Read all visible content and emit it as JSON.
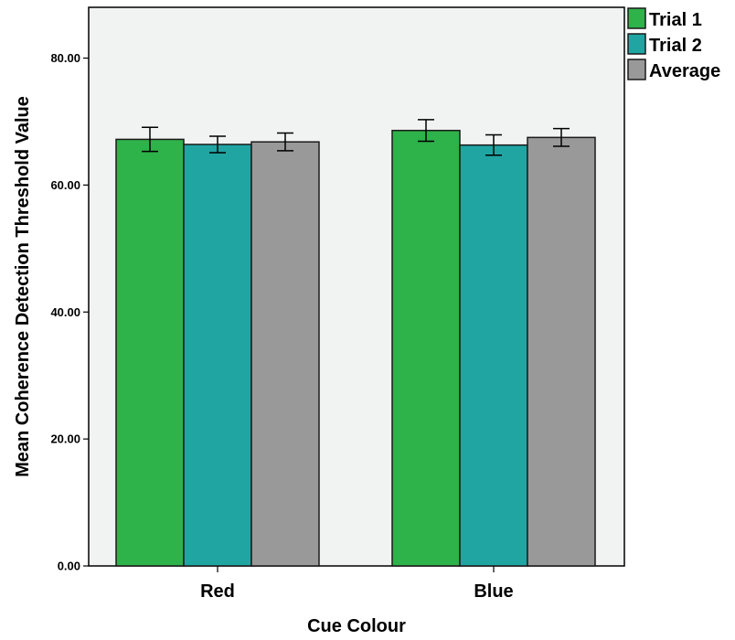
{
  "chart_data": {
    "type": "bar",
    "xlabel": "Cue Colour",
    "ylabel": "Mean Coherence Detection Threshold Value",
    "ylim": [
      0,
      88
    ],
    "yticks": [
      0,
      20,
      40,
      60,
      80
    ],
    "ytick_labels": [
      "0.00",
      "20.00",
      "40.00",
      "60.00",
      "80.00"
    ],
    "categories": [
      "Red",
      "Blue"
    ],
    "series": [
      {
        "name": "Trial 1",
        "color": "#2eb24a",
        "values": [
          67.2,
          68.6
        ],
        "error": [
          1.9,
          1.7
        ]
      },
      {
        "name": "Trial 2",
        "color": "#20a5a3",
        "values": [
          66.4,
          66.3
        ],
        "error": [
          1.3,
          1.6
        ]
      },
      {
        "name": "Average",
        "color": "#999999",
        "values": [
          66.8,
          67.5
        ],
        "error": [
          1.4,
          1.4
        ]
      }
    ],
    "legend_position": "top-right",
    "plot_background": "#f1f2f2",
    "grid": false,
    "error_bars": true
  }
}
